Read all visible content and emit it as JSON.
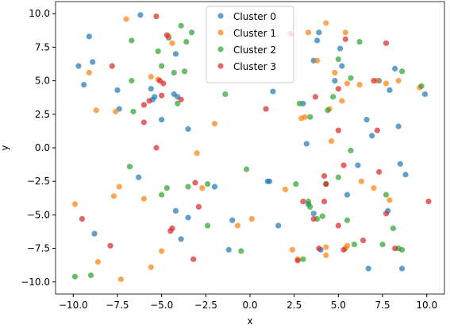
{
  "chart_data": {
    "type": "scatter",
    "x_label": "x",
    "y_label": "y",
    "xlim": [
      -11,
      11
    ],
    "ylim": [
      -10.9,
      10.9
    ],
    "xticks": [
      {
        "value": -10,
        "label": "−10.0"
      },
      {
        "value": -7.5,
        "label": "−7.5"
      },
      {
        "value": -5,
        "label": "−5.0"
      },
      {
        "value": -2.5,
        "label": "−2.5"
      },
      {
        "value": 0,
        "label": "0.0"
      },
      2.5,
      {
        "value": 5,
        "label": "5.0"
      },
      7.5,
      {
        "value": 10,
        "label": "10.0"
      }
    ],
    "yticks": [
      {
        "value": -10,
        "label": "−10.0"
      },
      {
        "value": -7.5,
        "label": "−7.5"
      },
      {
        "value": -5,
        "label": "−5.0"
      },
      {
        "value": -2.5,
        "label": "−2.5"
      },
      {
        "value": 0,
        "label": "0.0"
      },
      2.5,
      {
        "value": 5,
        "label": "5.0"
      },
      7.5,
      {
        "value": 10,
        "label": "10.0"
      }
    ],
    "legend": "upper center",
    "series": [
      {
        "name": "Cluster 0",
        "color": "#1f77b4",
        "x": [
          -6.2,
          -4.6,
          -9.1,
          -9.7,
          -8.9,
          -9.4,
          -7.5,
          -7.4,
          -5.6,
          -5.5,
          -5.4,
          -4.2,
          -4.3,
          -4.1,
          -5.0,
          -3.5,
          -6.3,
          -2.0,
          -4.2,
          -3.9,
          -3.5,
          -1.2,
          -1.0,
          -8.8,
          1.1,
          1.3,
          1.6,
          3.0,
          3.2,
          3.8,
          3.6,
          3.9,
          3.6,
          4.0,
          3.3,
          4.8,
          5.1,
          5.2,
          5.5,
          6.1,
          6.7,
          6.6,
          6.9,
          7.3,
          7.8,
          7.9,
          8.4,
          8.5,
          8.2,
          8.8,
          9.9,
          8.6,
          1.0
        ],
        "values": [
          9.9,
          8.2,
          8.3,
          6.1,
          6.4,
          4.7,
          4.3,
          2.9,
          4.4,
          3.6,
          3.8,
          7.0,
          4.0,
          3.8,
          2.1,
          1.4,
          -2.2,
          -2.9,
          -4.7,
          -6.8,
          -5.2,
          -7.6,
          -5.4,
          -6.4,
          -2.5,
          4.2,
          -5.8,
          3.3,
          0.3,
          8.0,
          6.5,
          8.6,
          -4.9,
          -7.6,
          -4.2,
          5.0,
          7.4,
          6.1,
          -3.5,
          -1.3,
          -9.0,
          2.1,
          0.9,
          5.0,
          -4.7,
          4.3,
          1.6,
          -1.2,
          5.9,
          -2.0,
          4.0,
          -9.0,
          -2.5
        ]
      },
      {
        "name": "Cluster 1",
        "color": "#ff7f0e",
        "x": [
          -7.0,
          -4.6,
          -4.4,
          -9.1,
          -8.7,
          -7.6,
          -5.6,
          -5.2,
          -2.0,
          -3.0,
          -9.9,
          -7.7,
          -7.4,
          -6.0,
          -5.0,
          -5.6,
          -8.6,
          -7.3,
          -2.7,
          -0.7,
          0.1,
          2.0,
          2.4,
          2.9,
          3.1,
          3.3,
          3.8,
          4.3,
          4.5,
          4.6,
          4.8,
          5.2,
          5.4,
          5.5,
          6.2,
          5.5,
          5.4,
          6.3,
          7.2,
          7.7,
          7.9,
          7.0,
          8.4,
          9.6,
          4.3,
          4.3,
          2.7
        ],
        "values": [
          9.6,
          8.3,
          7.8,
          5.6,
          2.8,
          2.7,
          5.3,
          5.1,
          1.8,
          -0.4,
          -4.2,
          -3.6,
          -2.9,
          -3.8,
          -7.7,
          -8.9,
          -8.5,
          -9.8,
          -3.0,
          -5.8,
          -5.3,
          -3.1,
          -7.6,
          2.2,
          2.3,
          8.6,
          6.5,
          9.3,
          2.9,
          0.5,
          5.6,
          3.5,
          8.6,
          4.8,
          4.7,
          -7.3,
          -7.5,
          -2.5,
          5.0,
          4.8,
          -3.9,
          -3.0,
          5.0,
          4.5,
          -7.4,
          -8.0,
          -8.3
        ]
      },
      {
        "name": "Cluster 2",
        "color": "#2ca02c",
        "x": [
          -3.9,
          -3.6,
          -3.3,
          -6.7,
          -5.2,
          -4.3,
          -3.7,
          -5.0,
          -6.7,
          -6.6,
          -4.1,
          -1.4,
          -6.8,
          -4.7,
          -5.0,
          -3.5,
          -2.4,
          -2.4,
          -0.2,
          -0.5,
          -9.9,
          -9.0,
          2.6,
          3.0,
          3.3,
          3.4,
          3.4,
          3.8,
          4.1,
          4.3,
          4.4,
          4.7,
          5.0,
          5.0,
          5.5,
          5.7,
          5.7,
          5.9,
          6.2,
          7.5,
          7.7,
          8.1,
          8.4,
          8.6,
          8.6,
          9.7,
          2.8
        ],
        "values": [
          9.1,
          7.9,
          8.6,
          8.0,
          7.2,
          5.6,
          5.7,
          6.1,
          5.0,
          2.7,
          3.3,
          4.0,
          -1.4,
          -3.0,
          -3.5,
          -2.9,
          -2.7,
          -5.8,
          -1.6,
          -7.7,
          -9.6,
          -9.5,
          -2.7,
          -8.3,
          -4.0,
          -4.4,
          2.3,
          -5.3,
          -5.1,
          -2.7,
          2.8,
          3.8,
          6.6,
          -2.2,
          -5.4,
          -0.2,
          5.2,
          -7.2,
          7.9,
          -7.2,
          -3.5,
          -6.0,
          -7.5,
          -7.6,
          5.7,
          4.6,
          3.3
        ]
      },
      {
        "name": "Cluster 3",
        "color": "#d62728",
        "x": [
          -5.3,
          -4.7,
          -7.8,
          -5.1,
          -4.9,
          -5.0,
          -6.0,
          -5.7,
          -3.9,
          -6.0,
          -5.3,
          -3.1,
          -2.9,
          -4.4,
          -4.5,
          -3.2,
          -7.9,
          -9.5,
          0.9,
          2.3,
          2.7,
          3.7,
          3.6,
          4.2,
          4.2,
          4.3,
          5.0,
          5.0,
          5.3,
          5.3,
          5.4,
          6.4,
          7.0,
          7.2,
          7.3,
          7.7,
          7.7,
          8.2,
          10.1,
          3.9,
          3.0,
          5.0
        ],
        "values": [
          9.8,
          8.4,
          6.1,
          5.0,
          4.8,
          3.9,
          3.2,
          3.5,
          3.6,
          1.9,
          0.0,
          -2.6,
          -4.4,
          -6.0,
          -6.2,
          -8.3,
          -7.3,
          -5.3,
          2.9,
          8.5,
          -8.4,
          3.8,
          -5.3,
          -4.0,
          -2.1,
          -2.7,
          4.4,
          1.3,
          -1.3,
          -7.6,
          8.1,
          -6.9,
          5.0,
          1.3,
          -1.8,
          7.8,
          -4.9,
          -7.5,
          -4.0,
          -7.5,
          -4.0,
          -5.8
        ]
      }
    ]
  }
}
